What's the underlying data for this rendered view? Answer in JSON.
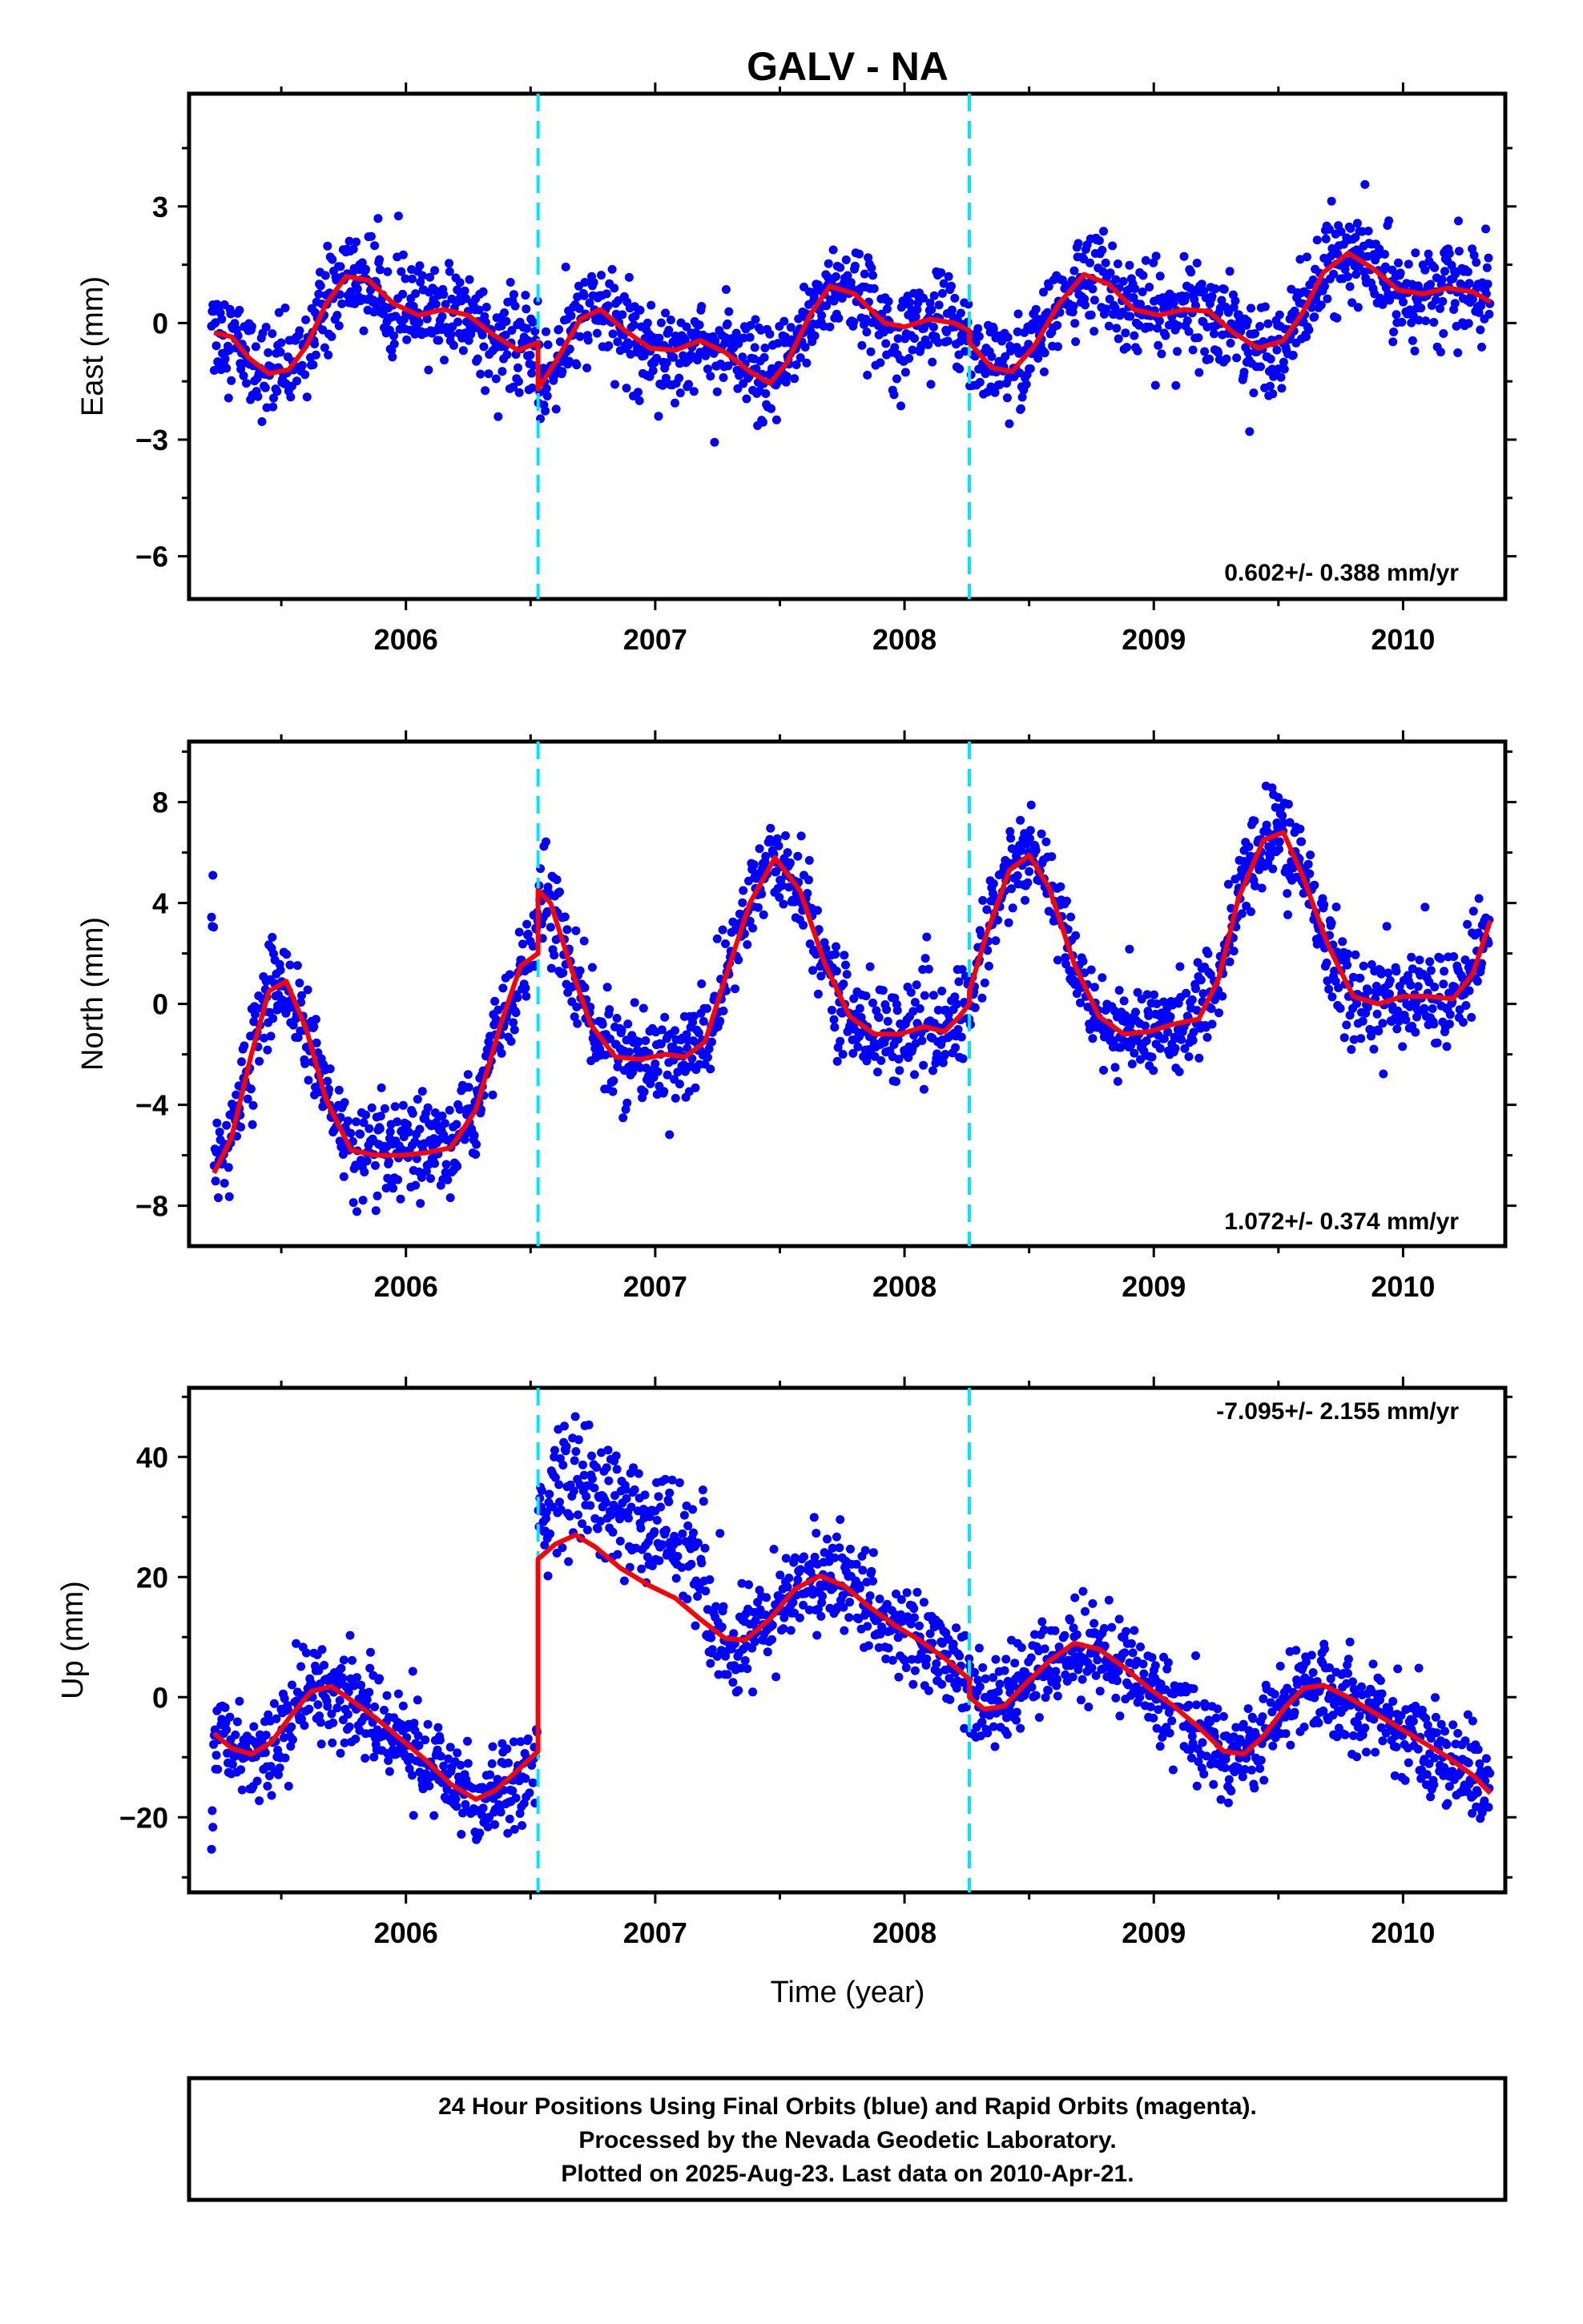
{
  "title": "GALV - NA",
  "xlabel": "Time (year)",
  "footer": {
    "line1": "24 Hour Positions Using Final Orbits (blue) and Rapid Orbits (magenta).",
    "line2": "Processed by the Nevada Geodetic Laboratory.",
    "line3": "Plotted on 2025-Aug-23. Last data on 2010-Apr-21."
  },
  "colors": {
    "points": "#0000ff",
    "model": "#ff0000",
    "steps": "#00e5ff",
    "frame": "#000000"
  },
  "chart_data": [
    {
      "type": "scatter",
      "component": "east",
      "ylabel": "East (mm)",
      "rate_text": "0.602+/- 0.388 mm/yr",
      "xlim": [
        2005.13,
        2010.41
      ],
      "ylim": [
        -7.1,
        5.9
      ],
      "yticks": [
        3,
        0,
        -3,
        -6
      ],
      "ytick_labels": [
        "3",
        "0",
        "−3",
        "−6"
      ],
      "xticks": [
        2006,
        2007,
        2008,
        2009,
        2010
      ],
      "step_lines": [
        2006.53,
        2008.26
      ],
      "model_line": [
        [
          2005.23,
          -0.25
        ],
        [
          2005.3,
          -0.35
        ],
        [
          2005.37,
          -0.9
        ],
        [
          2005.45,
          -1.3
        ],
        [
          2005.53,
          -1.2
        ],
        [
          2005.6,
          -0.6
        ],
        [
          2005.68,
          0.5
        ],
        [
          2005.76,
          1.2
        ],
        [
          2005.85,
          1.1
        ],
        [
          2005.95,
          0.5
        ],
        [
          2006.05,
          0.2
        ],
        [
          2006.15,
          0.35
        ],
        [
          2006.25,
          0.2
        ],
        [
          2006.35,
          -0.3
        ],
        [
          2006.45,
          -0.7
        ],
        [
          2006.53,
          -0.5
        ],
        [
          2006.53,
          -1.7
        ],
        [
          2006.6,
          -1.0
        ],
        [
          2006.7,
          0.1
        ],
        [
          2006.78,
          0.35
        ],
        [
          2006.88,
          -0.2
        ],
        [
          2006.98,
          -0.65
        ],
        [
          2007.08,
          -0.7
        ],
        [
          2007.18,
          -0.45
        ],
        [
          2007.28,
          -0.75
        ],
        [
          2007.38,
          -1.25
        ],
        [
          2007.46,
          -1.55
        ],
        [
          2007.53,
          -1.0
        ],
        [
          2007.62,
          0.2
        ],
        [
          2007.7,
          0.95
        ],
        [
          2007.8,
          0.75
        ],
        [
          2007.92,
          0.0
        ],
        [
          2008.0,
          -0.1
        ],
        [
          2008.1,
          0.1
        ],
        [
          2008.2,
          0.0
        ],
        [
          2008.26,
          -0.2
        ],
        [
          2008.26,
          -0.5
        ],
        [
          2008.35,
          -1.15
        ],
        [
          2008.43,
          -1.25
        ],
        [
          2008.52,
          -0.6
        ],
        [
          2008.62,
          0.5
        ],
        [
          2008.72,
          1.25
        ],
        [
          2008.82,
          1.0
        ],
        [
          2008.92,
          0.35
        ],
        [
          2009.02,
          0.2
        ],
        [
          2009.12,
          0.35
        ],
        [
          2009.22,
          0.3
        ],
        [
          2009.32,
          -0.25
        ],
        [
          2009.42,
          -0.65
        ],
        [
          2009.52,
          -0.45
        ],
        [
          2009.6,
          0.3
        ],
        [
          2009.68,
          1.3
        ],
        [
          2009.78,
          1.8
        ],
        [
          2009.88,
          1.4
        ],
        [
          2009.98,
          0.85
        ],
        [
          2010.08,
          0.75
        ],
        [
          2010.18,
          0.9
        ],
        [
          2010.28,
          0.8
        ],
        [
          2010.35,
          0.55
        ]
      ]
    },
    {
      "type": "scatter",
      "component": "north",
      "ylabel": "North (mm)",
      "rate_text": "1.072+/- 0.374 mm/yr",
      "xlim": [
        2005.13,
        2010.41
      ],
      "ylim": [
        -9.6,
        10.4
      ],
      "yticks": [
        8,
        4,
        0,
        -4,
        -8
      ],
      "ytick_labels": [
        "8",
        "4",
        "0",
        "−4",
        "−8"
      ],
      "xticks": [
        2006,
        2007,
        2008,
        2009,
        2010
      ],
      "step_lines": [
        2006.53,
        2008.26
      ],
      "model_line": [
        [
          2005.23,
          -6.7
        ],
        [
          2005.3,
          -5.3
        ],
        [
          2005.38,
          -2.0
        ],
        [
          2005.45,
          0.5
        ],
        [
          2005.52,
          0.9
        ],
        [
          2005.6,
          -1.0
        ],
        [
          2005.68,
          -3.8
        ],
        [
          2005.78,
          -5.8
        ],
        [
          2005.88,
          -6.0
        ],
        [
          2005.98,
          -6.0
        ],
        [
          2006.08,
          -5.9
        ],
        [
          2006.18,
          -5.7
        ],
        [
          2006.28,
          -4.2
        ],
        [
          2006.38,
          -0.8
        ],
        [
          2006.46,
          1.5
        ],
        [
          2006.53,
          2.0
        ],
        [
          2006.53,
          4.5
        ],
        [
          2006.58,
          4.0
        ],
        [
          2006.66,
          1.5
        ],
        [
          2006.74,
          -0.8
        ],
        [
          2006.84,
          -2.1
        ],
        [
          2006.94,
          -2.2
        ],
        [
          2007.04,
          -2.0
        ],
        [
          2007.12,
          -2.1
        ],
        [
          2007.2,
          -1.5
        ],
        [
          2007.28,
          1.0
        ],
        [
          2007.38,
          4.0
        ],
        [
          2007.48,
          5.8
        ],
        [
          2007.58,
          4.5
        ],
        [
          2007.68,
          1.6
        ],
        [
          2007.78,
          -0.5
        ],
        [
          2007.88,
          -1.2
        ],
        [
          2007.98,
          -1.2
        ],
        [
          2008.08,
          -0.9
        ],
        [
          2008.16,
          -1.1
        ],
        [
          2008.22,
          -0.5
        ],
        [
          2008.26,
          0.0
        ],
        [
          2008.26,
          0.5
        ],
        [
          2008.33,
          2.8
        ],
        [
          2008.42,
          5.3
        ],
        [
          2008.5,
          5.9
        ],
        [
          2008.58,
          4.6
        ],
        [
          2008.68,
          1.6
        ],
        [
          2008.78,
          -0.5
        ],
        [
          2008.88,
          -1.2
        ],
        [
          2008.98,
          -1.1
        ],
        [
          2009.08,
          -0.8
        ],
        [
          2009.18,
          -0.6
        ],
        [
          2009.26,
          1.0
        ],
        [
          2009.34,
          4.2
        ],
        [
          2009.44,
          6.5
        ],
        [
          2009.52,
          6.8
        ],
        [
          2009.6,
          5.0
        ],
        [
          2009.7,
          2.3
        ],
        [
          2009.8,
          0.3
        ],
        [
          2009.9,
          0.0
        ],
        [
          2010.0,
          0.3
        ],
        [
          2010.1,
          0.3
        ],
        [
          2010.2,
          0.2
        ],
        [
          2010.28,
          1.2
        ],
        [
          2010.35,
          3.3
        ]
      ]
    },
    {
      "type": "scatter",
      "component": "up",
      "ylabel": "Up (mm)",
      "rate_text": "-7.095+/- 2.155 mm/yr",
      "xlim": [
        2005.13,
        2010.41
      ],
      "ylim": [
        -32.5,
        51.5
      ],
      "yticks": [
        40,
        20,
        0,
        -20
      ],
      "ytick_labels": [
        "40",
        "20",
        "0",
        "−20"
      ],
      "xticks": [
        2006,
        2007,
        2008,
        2009,
        2010
      ],
      "step_lines": [
        2006.53,
        2008.26
      ],
      "model_line": [
        [
          2005.23,
          -6.0
        ],
        [
          2005.3,
          -8.5
        ],
        [
          2005.38,
          -9.5
        ],
        [
          2005.46,
          -7.5
        ],
        [
          2005.54,
          -3.0
        ],
        [
          2005.62,
          1.0
        ],
        [
          2005.7,
          1.8
        ],
        [
          2005.78,
          -0.5
        ],
        [
          2005.88,
          -3.5
        ],
        [
          2005.98,
          -7.0
        ],
        [
          2006.08,
          -10.5
        ],
        [
          2006.18,
          -14.5
        ],
        [
          2006.28,
          -17.0
        ],
        [
          2006.36,
          -15.5
        ],
        [
          2006.44,
          -12.5
        ],
        [
          2006.53,
          -9.0
        ],
        [
          2006.53,
          23.0
        ],
        [
          2006.6,
          25.5
        ],
        [
          2006.68,
          27.0
        ],
        [
          2006.76,
          25.0
        ],
        [
          2006.86,
          21.5
        ],
        [
          2006.98,
          18.5
        ],
        [
          2007.08,
          16.5
        ],
        [
          2007.18,
          13.0
        ],
        [
          2007.28,
          9.8
        ],
        [
          2007.36,
          9.5
        ],
        [
          2007.46,
          13.0
        ],
        [
          2007.56,
          18.0
        ],
        [
          2007.66,
          20.2
        ],
        [
          2007.76,
          18.5
        ],
        [
          2007.86,
          15.0
        ],
        [
          2007.96,
          12.0
        ],
        [
          2008.06,
          9.5
        ],
        [
          2008.16,
          6.5
        ],
        [
          2008.26,
          3.0
        ],
        [
          2008.26,
          0.0
        ],
        [
          2008.32,
          -2.0
        ],
        [
          2008.4,
          -1.5
        ],
        [
          2008.48,
          2.0
        ],
        [
          2008.58,
          6.0
        ],
        [
          2008.68,
          9.0
        ],
        [
          2008.78,
          8.0
        ],
        [
          2008.88,
          5.0
        ],
        [
          2008.98,
          1.5
        ],
        [
          2009.08,
          -1.5
        ],
        [
          2009.18,
          -5.0
        ],
        [
          2009.28,
          -9.0
        ],
        [
          2009.36,
          -9.5
        ],
        [
          2009.44,
          -6.5
        ],
        [
          2009.52,
          -2.0
        ],
        [
          2009.6,
          1.5
        ],
        [
          2009.68,
          2.0
        ],
        [
          2009.78,
          0.0
        ],
        [
          2009.88,
          -2.5
        ],
        [
          2009.98,
          -5.0
        ],
        [
          2010.08,
          -7.5
        ],
        [
          2010.18,
          -10.0
        ],
        [
          2010.28,
          -13.0
        ],
        [
          2010.35,
          -16.0
        ]
      ]
    }
  ]
}
